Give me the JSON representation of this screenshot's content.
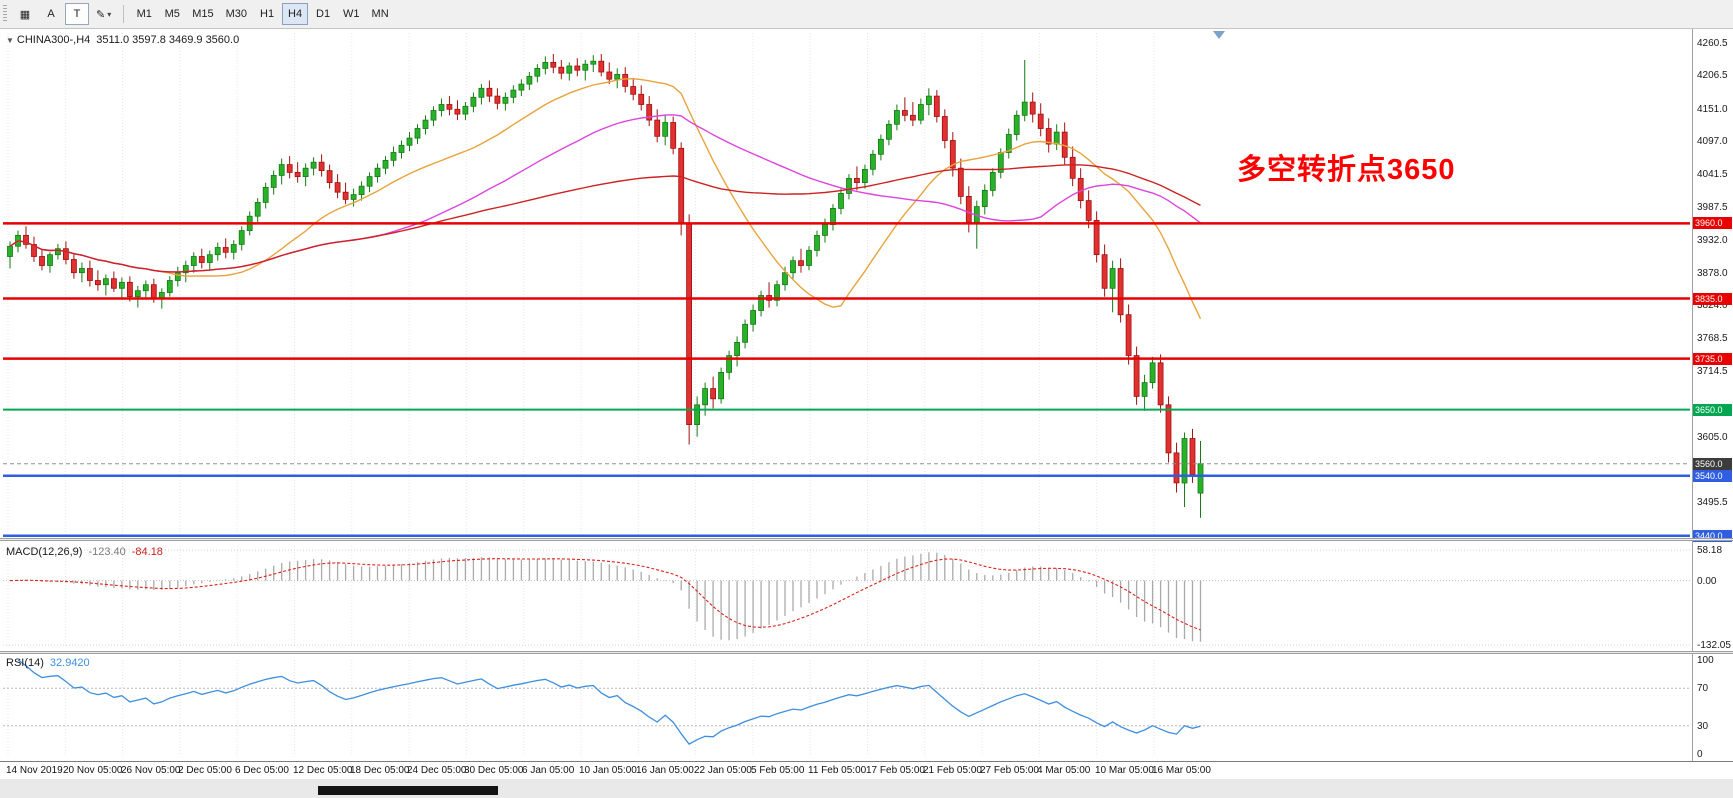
{
  "toolbar": {
    "buttons": {
      "cursor": "A",
      "text": "T"
    },
    "timeframes": [
      "M1",
      "M5",
      "M15",
      "M30",
      "H1",
      "H4",
      "D1",
      "W1",
      "MN"
    ],
    "active_timeframe": "H4"
  },
  "chart": {
    "title": "CHINA300-,H4",
    "ohlc_label": "3511.0 3597.8 3469.9 3560.0",
    "annotation": {
      "text": "多空转折点3650",
      "color": "#FF0000"
    }
  },
  "indicators": {
    "macd": {
      "label": "MACD(12,26,9)",
      "value1": "-123.40",
      "value2": "-84.18"
    },
    "rsi": {
      "label": "RSI(14)",
      "value": "32.9420"
    }
  },
  "chart_data": {
    "type": "candlestick",
    "symbol": "CHINA300-",
    "period": "H4",
    "current_ohlc": {
      "open": 3511.0,
      "high": 3597.8,
      "low": 3469.9,
      "close": 3560.0
    },
    "price_ticks": [
      "4260.5",
      "4206.5",
      "4151.0",
      "4097.0",
      "4041.5",
      "3987.5",
      "3932.0",
      "3878.0",
      "3824.0",
      "3768.5",
      "3714.5",
      "3605.0",
      "3495.5"
    ],
    "time_ticks": [
      "14 Nov 2019",
      "20 Nov 05:00",
      "26 Nov 05:00",
      "2 Dec 05:00",
      "6 Dec 05:00",
      "12 Dec 05:00",
      "18 Dec 05:00",
      "24 Dec 05:00",
      "30 Dec 05:00",
      "6 Jan 05:00",
      "10 Jan 05:00",
      "16 Jan 05:00",
      "22 Jan 05:00",
      "5 Feb 05:00",
      "11 Feb 05:00",
      "17 Feb 05:00",
      "21 Feb 05:00",
      "27 Feb 05:00",
      "4 Mar 05:00",
      "10 Mar 05:00",
      "16 Mar 05:00"
    ],
    "colors": {
      "up": "#29B229",
      "up_border": "#147A14",
      "down": "#E03030",
      "down_border": "#A01010"
    },
    "moving_averages": [
      {
        "period": 20,
        "color": "#E8A33D"
      },
      {
        "period": 45,
        "color": "#DD44DD"
      },
      {
        "period": 90,
        "color": "#CC2222"
      }
    ],
    "hlines": [
      {
        "value": 3960.0,
        "label": "3960.0",
        "color": "#E80000",
        "width": 2.5
      },
      {
        "value": 3835.0,
        "label": "3835.0",
        "color": "#E80000",
        "width": 2.5
      },
      {
        "value": 3735.0,
        "label": "3735.0",
        "color": "#E80000",
        "width": 2.5
      },
      {
        "value": 3650.0,
        "label": "3650.0",
        "color": "#00A651",
        "width": 2
      },
      {
        "value": 3540.0,
        "label": "3540.0",
        "color": "#2F5FE0",
        "width": 2.5
      },
      {
        "value": 3440.0,
        "label": "3440.0",
        "color": "#2F5FE0",
        "width": 2.5
      }
    ],
    "current_price": {
      "value": 3560.0,
      "label": "3560.0",
      "color": "#3C3C3C"
    },
    "macd": {
      "params": "12,26,9",
      "axis_max": "58.18",
      "axis_zero": "0.00",
      "axis_min": "-132.05"
    },
    "rsi": {
      "period": 14,
      "axis": [
        "100",
        "70",
        "30",
        "0"
      ],
      "levels": [
        70,
        30
      ]
    },
    "candles": [
      [
        3905,
        3930,
        3885,
        3922
      ],
      [
        3922,
        3948,
        3912,
        3940
      ],
      [
        3940,
        3955,
        3918,
        3925
      ],
      [
        3925,
        3938,
        3896,
        3905
      ],
      [
        3905,
        3918,
        3882,
        3890
      ],
      [
        3890,
        3912,
        3878,
        3908
      ],
      [
        3908,
        3926,
        3900,
        3918
      ],
      [
        3918,
        3930,
        3892,
        3900
      ],
      [
        3900,
        3910,
        3868,
        3878
      ],
      [
        3878,
        3895,
        3862,
        3885
      ],
      [
        3885,
        3898,
        3855,
        3865
      ],
      [
        3865,
        3882,
        3848,
        3858
      ],
      [
        3858,
        3875,
        3840,
        3868
      ],
      [
        3868,
        3880,
        3846,
        3852
      ],
      [
        3852,
        3870,
        3835,
        3862
      ],
      [
        3862,
        3872,
        3830,
        3838
      ],
      [
        3838,
        3856,
        3820,
        3848
      ],
      [
        3848,
        3865,
        3836,
        3858
      ],
      [
        3858,
        3868,
        3828,
        3835
      ],
      [
        3835,
        3852,
        3818,
        3845
      ],
      [
        3845,
        3872,
        3838,
        3865
      ],
      [
        3865,
        3888,
        3855,
        3878
      ],
      [
        3878,
        3898,
        3862,
        3890
      ],
      [
        3890,
        3912,
        3878,
        3905
      ],
      [
        3905,
        3918,
        3885,
        3895
      ],
      [
        3895,
        3915,
        3882,
        3908
      ],
      [
        3908,
        3928,
        3898,
        3920
      ],
      [
        3920,
        3935,
        3902,
        3912
      ],
      [
        3912,
        3932,
        3900,
        3925
      ],
      [
        3925,
        3955,
        3915,
        3948
      ],
      [
        3948,
        3980,
        3940,
        3972
      ],
      [
        3972,
        4002,
        3962,
        3995
      ],
      [
        3995,
        4028,
        3985,
        4020
      ],
      [
        4020,
        4048,
        4008,
        4040
      ],
      [
        4040,
        4068,
        4025,
        4058
      ],
      [
        4058,
        4072,
        4035,
        4045
      ],
      [
        4045,
        4062,
        4028,
        4038
      ],
      [
        4038,
        4060,
        4022,
        4052
      ],
      [
        4052,
        4070,
        4040,
        4062
      ],
      [
        4062,
        4075,
        4038,
        4048
      ],
      [
        4048,
        4058,
        4018,
        4028
      ],
      [
        4028,
        4042,
        4002,
        4012
      ],
      [
        4012,
        4028,
        3992,
        4000
      ],
      [
        4000,
        4018,
        3988,
        4008
      ],
      [
        4008,
        4030,
        3998,
        4022
      ],
      [
        4022,
        4045,
        4012,
        4038
      ],
      [
        4038,
        4060,
        4028,
        4052
      ],
      [
        4052,
        4072,
        4042,
        4065
      ],
      [
        4065,
        4088,
        4055,
        4078
      ],
      [
        4078,
        4098,
        4068,
        4090
      ],
      [
        4090,
        4112,
        4080,
        4102
      ],
      [
        4102,
        4125,
        4092,
        4118
      ],
      [
        4118,
        4140,
        4108,
        4132
      ],
      [
        4132,
        4155,
        4122,
        4148
      ],
      [
        4148,
        4168,
        4138,
        4158
      ],
      [
        4158,
        4172,
        4140,
        4150
      ],
      [
        4150,
        4165,
        4132,
        4142
      ],
      [
        4142,
        4162,
        4132,
        4155
      ],
      [
        4155,
        4178,
        4145,
        4170
      ],
      [
        4170,
        4192,
        4158,
        4185
      ],
      [
        4185,
        4198,
        4162,
        4172
      ],
      [
        4172,
        4185,
        4150,
        4160
      ],
      [
        4160,
        4178,
        4148,
        4170
      ],
      [
        4170,
        4190,
        4160,
        4182
      ],
      [
        4182,
        4200,
        4172,
        4192
      ],
      [
        4192,
        4212,
        4182,
        4205
      ],
      [
        4205,
        4225,
        4195,
        4218
      ],
      [
        4218,
        4238,
        4208,
        4228
      ],
      [
        4228,
        4242,
        4210,
        4220
      ],
      [
        4220,
        4232,
        4200,
        4210
      ],
      [
        4210,
        4228,
        4198,
        4222
      ],
      [
        4222,
        4235,
        4205,
        4215
      ],
      [
        4215,
        4232,
        4198,
        4225
      ],
      [
        4225,
        4240,
        4212,
        4230
      ],
      [
        4230,
        4242,
        4205,
        4212
      ],
      [
        4212,
        4228,
        4192,
        4200
      ],
      [
        4200,
        4218,
        4185,
        4208
      ],
      [
        4208,
        4220,
        4178,
        4188
      ],
      [
        4188,
        4202,
        4165,
        4175
      ],
      [
        4175,
        4190,
        4148,
        4158
      ],
      [
        4158,
        4172,
        4122,
        4132
      ],
      [
        4132,
        4150,
        4095,
        4105
      ],
      [
        4105,
        4140,
        4090,
        4128
      ],
      [
        4128,
        4138,
        4075,
        4085
      ],
      [
        4085,
        4095,
        3940,
        3960
      ],
      [
        3960,
        3975,
        3592,
        3625
      ],
      [
        3625,
        3672,
        3605,
        3658
      ],
      [
        3658,
        3695,
        3640,
        3685
      ],
      [
        3685,
        3705,
        3652,
        3668
      ],
      [
        3668,
        3720,
        3660,
        3712
      ],
      [
        3712,
        3748,
        3700,
        3740
      ],
      [
        3740,
        3772,
        3722,
        3762
      ],
      [
        3762,
        3800,
        3752,
        3792
      ],
      [
        3792,
        3825,
        3780,
        3815
      ],
      [
        3815,
        3848,
        3805,
        3840
      ],
      [
        3840,
        3862,
        3820,
        3832
      ],
      [
        3832,
        3865,
        3822,
        3858
      ],
      [
        3858,
        3888,
        3848,
        3878
      ],
      [
        3878,
        3905,
        3868,
        3898
      ],
      [
        3898,
        3918,
        3878,
        3890
      ],
      [
        3890,
        3922,
        3882,
        3915
      ],
      [
        3915,
        3948,
        3905,
        3940
      ],
      [
        3940,
        3968,
        3928,
        3958
      ],
      [
        3958,
        3992,
        3948,
        3985
      ],
      [
        3985,
        4018,
        3975,
        4010
      ],
      [
        4010,
        4042,
        4000,
        4035
      ],
      [
        4035,
        4055,
        4015,
        4028
      ],
      [
        4028,
        4058,
        4018,
        4050
      ],
      [
        4050,
        4082,
        4040,
        4075
      ],
      [
        4075,
        4108,
        4065,
        4100
      ],
      [
        4100,
        4132,
        4090,
        4125
      ],
      [
        4125,
        4158,
        4115,
        4148
      ],
      [
        4148,
        4170,
        4130,
        4140
      ],
      [
        4140,
        4162,
        4122,
        4132
      ],
      [
        4132,
        4168,
        4125,
        4158
      ],
      [
        4158,
        4185,
        4140,
        4172
      ],
      [
        4172,
        4182,
        4128,
        4138
      ],
      [
        4138,
        4150,
        4085,
        4098
      ],
      [
        4098,
        4112,
        4038,
        4052
      ],
      [
        4052,
        4068,
        3992,
        4005
      ],
      [
        4005,
        4022,
        3945,
        3962
      ],
      [
        3962,
        3998,
        3918,
        3988
      ],
      [
        3988,
        4025,
        3975,
        4015
      ],
      [
        4015,
        4052,
        4005,
        4045
      ],
      [
        4045,
        4085,
        4035,
        4078
      ],
      [
        4078,
        4118,
        4068,
        4108
      ],
      [
        4108,
        4148,
        4098,
        4140
      ],
      [
        4140,
        4232,
        4130,
        4162
      ],
      [
        4162,
        4178,
        4128,
        4142
      ],
      [
        4142,
        4160,
        4105,
        4118
      ],
      [
        4118,
        4135,
        4078,
        4092
      ],
      [
        4092,
        4125,
        4082,
        4112
      ],
      [
        4112,
        4128,
        4058,
        4070
      ],
      [
        4070,
        4088,
        4022,
        4035
      ],
      [
        4035,
        4052,
        3985,
        3998
      ],
      [
        3998,
        4015,
        3952,
        3965
      ],
      [
        3965,
        3980,
        3895,
        3908
      ],
      [
        3908,
        3925,
        3838,
        3852
      ],
      [
        3852,
        3898,
        3812,
        3885
      ],
      [
        3885,
        3902,
        3795,
        3808
      ],
      [
        3808,
        3825,
        3725,
        3740
      ],
      [
        3740,
        3755,
        3658,
        3672
      ],
      [
        3672,
        3708,
        3648,
        3695
      ],
      [
        3695,
        3738,
        3685,
        3728
      ],
      [
        3728,
        3742,
        3645,
        3658
      ],
      [
        3658,
        3672,
        3562,
        3578
      ],
      [
        3578,
        3595,
        3512,
        3528
      ],
      [
        3528,
        3612,
        3488,
        3602
      ],
      [
        3602,
        3618,
        3528,
        3542
      ],
      [
        3511,
        3597.8,
        3469.9,
        3560
      ]
    ]
  }
}
